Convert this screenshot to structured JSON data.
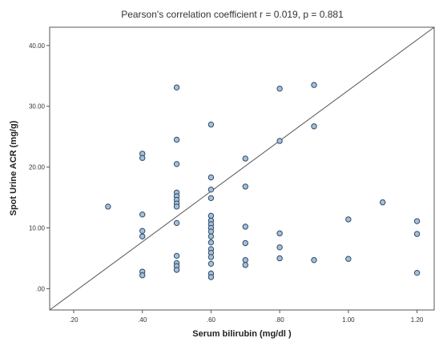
{
  "chart_data": {
    "type": "scatter",
    "title": "Pearson's correlation coefficient r = 0.019, p = 0.881",
    "xlabel": "Serum bilirubin (mg/dl )",
    "ylabel": "Spot Urine ACR (mg/g)",
    "xlim": [
      0.13,
      1.25
    ],
    "ylim": [
      -3.5,
      43
    ],
    "xticks": [
      {
        "value": 0.2,
        "label": ".20"
      },
      {
        "value": 0.4,
        "label": ".40"
      },
      {
        "value": 0.6,
        "label": ".60"
      },
      {
        "value": 0.8,
        "label": ".80"
      },
      {
        "value": 1.0,
        "label": "1.00"
      },
      {
        "value": 1.2,
        "label": "1.20"
      }
    ],
    "yticks": [
      {
        "value": 0,
        "label": ".00"
      },
      {
        "value": 10,
        "label": "10.00"
      },
      {
        "value": 20,
        "label": "20.00"
      },
      {
        "value": 30,
        "label": "30.00"
      },
      {
        "value": 40,
        "label": "40.00"
      }
    ],
    "grid": false,
    "legend": "none",
    "colors": {
      "marker_fill": "#a9bfd6",
      "marker_stroke": "#2b4a6b",
      "line": "#555555",
      "frame": "#555555"
    },
    "reference_line": {
      "x": [
        0.13,
        1.25
      ],
      "y": [
        -3.5,
        43
      ]
    },
    "points": [
      {
        "x": 0.3,
        "y": 13.5
      },
      {
        "x": 0.4,
        "y": 22.2
      },
      {
        "x": 0.4,
        "y": 21.5
      },
      {
        "x": 0.4,
        "y": 12.2
      },
      {
        "x": 0.4,
        "y": 9.5
      },
      {
        "x": 0.4,
        "y": 8.6
      },
      {
        "x": 0.4,
        "y": 2.8
      },
      {
        "x": 0.4,
        "y": 2.2
      },
      {
        "x": 0.5,
        "y": 33.1
      },
      {
        "x": 0.5,
        "y": 24.5
      },
      {
        "x": 0.5,
        "y": 20.5
      },
      {
        "x": 0.5,
        "y": 15.8
      },
      {
        "x": 0.5,
        "y": 15.2
      },
      {
        "x": 0.5,
        "y": 14.6
      },
      {
        "x": 0.5,
        "y": 14.0
      },
      {
        "x": 0.5,
        "y": 13.5
      },
      {
        "x": 0.5,
        "y": 10.8
      },
      {
        "x": 0.5,
        "y": 5.4
      },
      {
        "x": 0.5,
        "y": 4.2
      },
      {
        "x": 0.5,
        "y": 3.7
      },
      {
        "x": 0.5,
        "y": 3.1
      },
      {
        "x": 0.6,
        "y": 27.0
      },
      {
        "x": 0.6,
        "y": 18.3
      },
      {
        "x": 0.6,
        "y": 16.3
      },
      {
        "x": 0.6,
        "y": 14.9
      },
      {
        "x": 0.6,
        "y": 12.0
      },
      {
        "x": 0.6,
        "y": 11.2
      },
      {
        "x": 0.6,
        "y": 10.6
      },
      {
        "x": 0.6,
        "y": 10.0
      },
      {
        "x": 0.6,
        "y": 9.4
      },
      {
        "x": 0.6,
        "y": 8.6
      },
      {
        "x": 0.6,
        "y": 7.6
      },
      {
        "x": 0.6,
        "y": 6.5
      },
      {
        "x": 0.6,
        "y": 5.9
      },
      {
        "x": 0.6,
        "y": 5.2
      },
      {
        "x": 0.6,
        "y": 4.1
      },
      {
        "x": 0.6,
        "y": 2.5
      },
      {
        "x": 0.6,
        "y": 1.9
      },
      {
        "x": 0.7,
        "y": 21.4
      },
      {
        "x": 0.7,
        "y": 16.8
      },
      {
        "x": 0.7,
        "y": 10.2
      },
      {
        "x": 0.7,
        "y": 7.5
      },
      {
        "x": 0.7,
        "y": 4.7
      },
      {
        "x": 0.7,
        "y": 3.9
      },
      {
        "x": 0.8,
        "y": 32.9
      },
      {
        "x": 0.8,
        "y": 24.3
      },
      {
        "x": 0.8,
        "y": 9.1
      },
      {
        "x": 0.8,
        "y": 6.8
      },
      {
        "x": 0.8,
        "y": 5.0
      },
      {
        "x": 0.9,
        "y": 33.5
      },
      {
        "x": 0.9,
        "y": 26.7
      },
      {
        "x": 0.9,
        "y": 4.7
      },
      {
        "x": 1.0,
        "y": 11.4
      },
      {
        "x": 1.0,
        "y": 4.9
      },
      {
        "x": 1.1,
        "y": 14.2
      },
      {
        "x": 1.2,
        "y": 11.1
      },
      {
        "x": 1.2,
        "y": 9.0
      },
      {
        "x": 1.2,
        "y": 2.6
      }
    ]
  }
}
